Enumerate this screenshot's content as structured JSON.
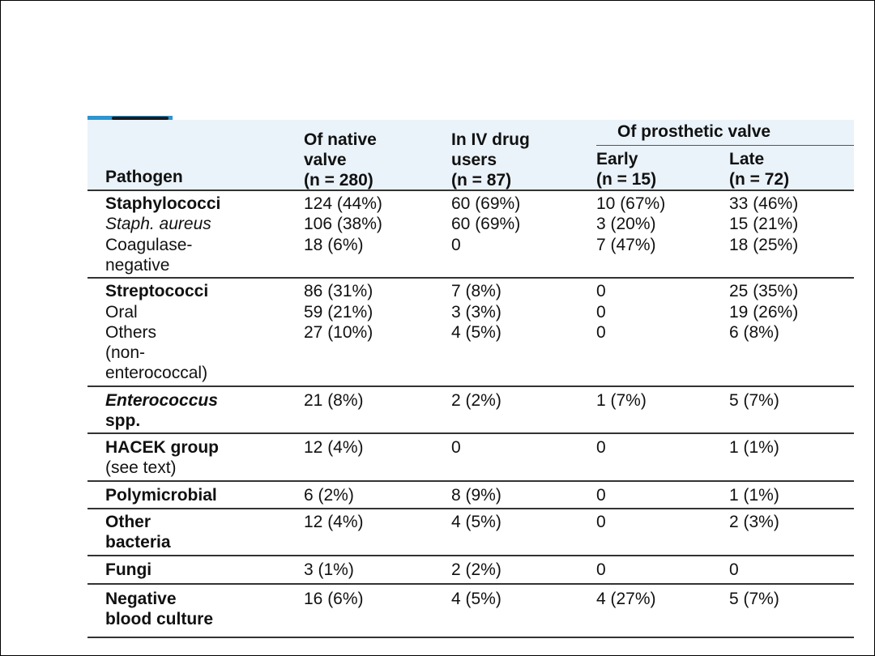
{
  "table": {
    "headers": {
      "pathogen": "Pathogen",
      "native": "Of native\nvalve\n(n = 280)",
      "ivdu": "In IV drug\nusers\n(n = 87)",
      "prosthetic_group": "Of prosthetic valve",
      "early": "Early\n(n = 15)",
      "late": "Late\n(n = 72)"
    },
    "groups": [
      {
        "rows": [
          {
            "pathogen": "Staphylococci",
            "native": "124 (44%)",
            "ivdu": "60 (69%)",
            "early": "10 (67%)",
            "late": "33 (46%)"
          },
          {
            "pathogen": "Staph. aureus",
            "native": "106 (38%)",
            "ivdu": "60 (69%)",
            "early": "3 (20%)",
            "late": "15 (21%)"
          },
          {
            "pathogen": "Coagulase-\nnegative",
            "native": "18 (6%)",
            "ivdu": "0",
            "early": "7 (47%)",
            "late": "18 (25%)"
          }
        ]
      },
      {
        "rows": [
          {
            "pathogen": "Streptococci",
            "native": "86 (31%)",
            "ivdu": "7 (8%)",
            "early": "0",
            "late": "25 (35%)"
          },
          {
            "pathogen": "Oral",
            "native": "59 (21%)",
            "ivdu": "3 (3%)",
            "early": "0",
            "late": "19 (26%)"
          },
          {
            "pathogen": "Others\n(non-\nenterococcal)",
            "native": "27 (10%)",
            "ivdu": "4 (5%)",
            "early": "0",
            "late": "6 (8%)"
          }
        ]
      },
      {
        "rows": [
          {
            "pathogen": "Enterococcus",
            "pathogen_suffix": "spp.",
            "native": "21 (8%)",
            "ivdu": "2 (2%)",
            "early": "1 (7%)",
            "late": "5 (7%)"
          }
        ]
      },
      {
        "rows": [
          {
            "pathogen": "HACEK group",
            "pathogen_note": "(see text)",
            "native": "12 (4%)",
            "ivdu": "0",
            "early": "0",
            "late": "1 (1%)"
          }
        ]
      },
      {
        "rows": [
          {
            "pathogen": "Polymicrobial",
            "native": "6 (2%)",
            "ivdu": "8 (9%)",
            "early": "0",
            "late": "1 (1%)"
          }
        ]
      },
      {
        "rows": [
          {
            "pathogen": "Other\nbacteria",
            "native": "12 (4%)",
            "ivdu": "4 (5%)",
            "early": "0",
            "late": "2 (3%)"
          }
        ]
      },
      {
        "rows": [
          {
            "pathogen": "Fungi",
            "native": "3 (1%)",
            "ivdu": "2 (2%)",
            "early": "0",
            "late": "0"
          }
        ]
      },
      {
        "rows": [
          {
            "pathogen": "Negative\nblood culture",
            "native": "16 (6%)",
            "ivdu": "4 (5%)",
            "early": "4 (27%)",
            "late": "5 (7%)"
          }
        ]
      }
    ]
  }
}
